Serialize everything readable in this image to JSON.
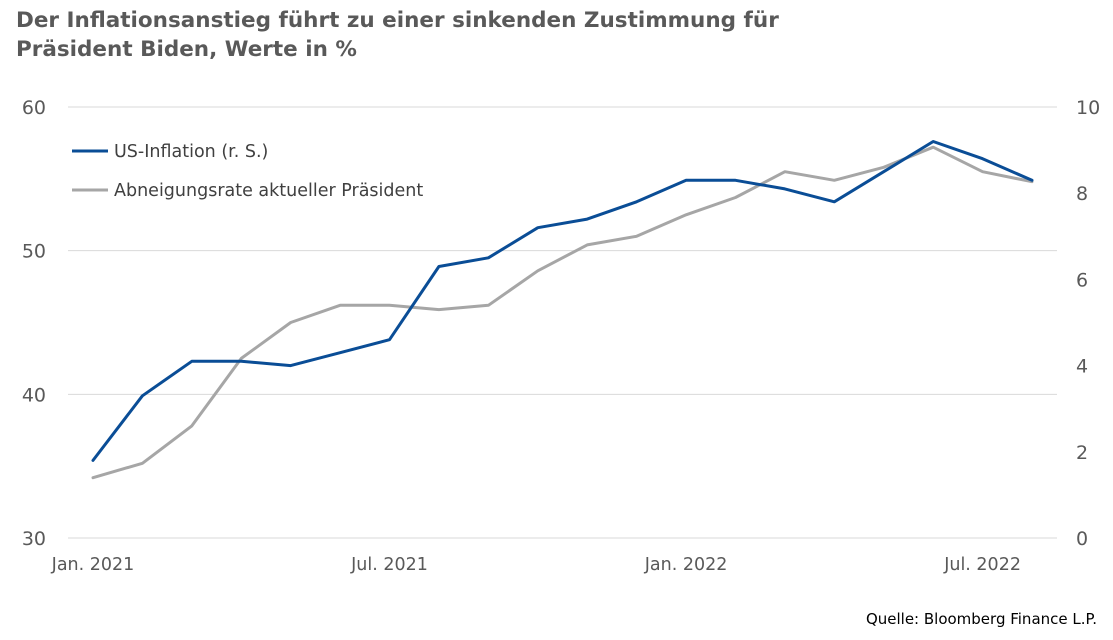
{
  "title": {
    "line1": "Der Inflationsanstieg führt zu einer sinkenden Zustimmung für",
    "line2": "Präsident Biden, Werte in %"
  },
  "source": "Quelle: Bloomberg Finance L.P.",
  "colors": {
    "inflation": "#0a4d96",
    "disapproval": "#a6a6a6",
    "grid": "#d9d9d9",
    "text": "#595959"
  },
  "chart_data": {
    "type": "line",
    "categories": [
      "Jan. 2021",
      "Feb. 2021",
      "Mär. 2021",
      "Apr. 2021",
      "Mai 2021",
      "Jun. 2021",
      "Jul. 2021",
      "Aug. 2021",
      "Sep. 2021",
      "Okt. 2021",
      "Nov. 2021",
      "Dez. 2021",
      "Jan. 2022",
      "Feb. 2022",
      "Mär. 2022",
      "Apr. 2022",
      "Mai 2022",
      "Jun. 2022",
      "Jul. 2022",
      "Aug. 2022"
    ],
    "x_tick_labels": [
      {
        "index": 0,
        "label": "Jan. 2021"
      },
      {
        "index": 6,
        "label": "Jul. 2021"
      },
      {
        "index": 12,
        "label": "Jan. 2022"
      },
      {
        "index": 18,
        "label": "Jul. 2022"
      }
    ],
    "y_left": {
      "ticks": [
        "30",
        "40",
        "50",
        "60"
      ],
      "min": 30,
      "max": 60
    },
    "y_right": {
      "ticks": [
        "0",
        "2",
        "4",
        "6",
        "8",
        "10"
      ],
      "min": 0,
      "max": 10
    },
    "grid": true,
    "legend": "top-left",
    "series": [
      {
        "name": "US-Inflation (r. S.)",
        "axis": "right",
        "color": "#0a4d96",
        "values": [
          1.8,
          3.3,
          4.1,
          4.1,
          4.0,
          4.3,
          4.6,
          6.3,
          6.5,
          7.2,
          7.4,
          7.8,
          8.3,
          8.3,
          8.1,
          7.8,
          8.5,
          9.2,
          8.8,
          8.3
        ]
      },
      {
        "name": "Abneigungsrate aktueller Präsident",
        "axis": "left",
        "color": "#a6a6a6",
        "values": [
          34.2,
          35.2,
          37.8,
          42.5,
          45.0,
          46.2,
          46.2,
          45.9,
          46.2,
          48.6,
          50.4,
          51.0,
          52.5,
          53.7,
          55.5,
          54.9,
          55.8,
          57.2,
          55.5,
          54.8
        ]
      }
    ]
  }
}
